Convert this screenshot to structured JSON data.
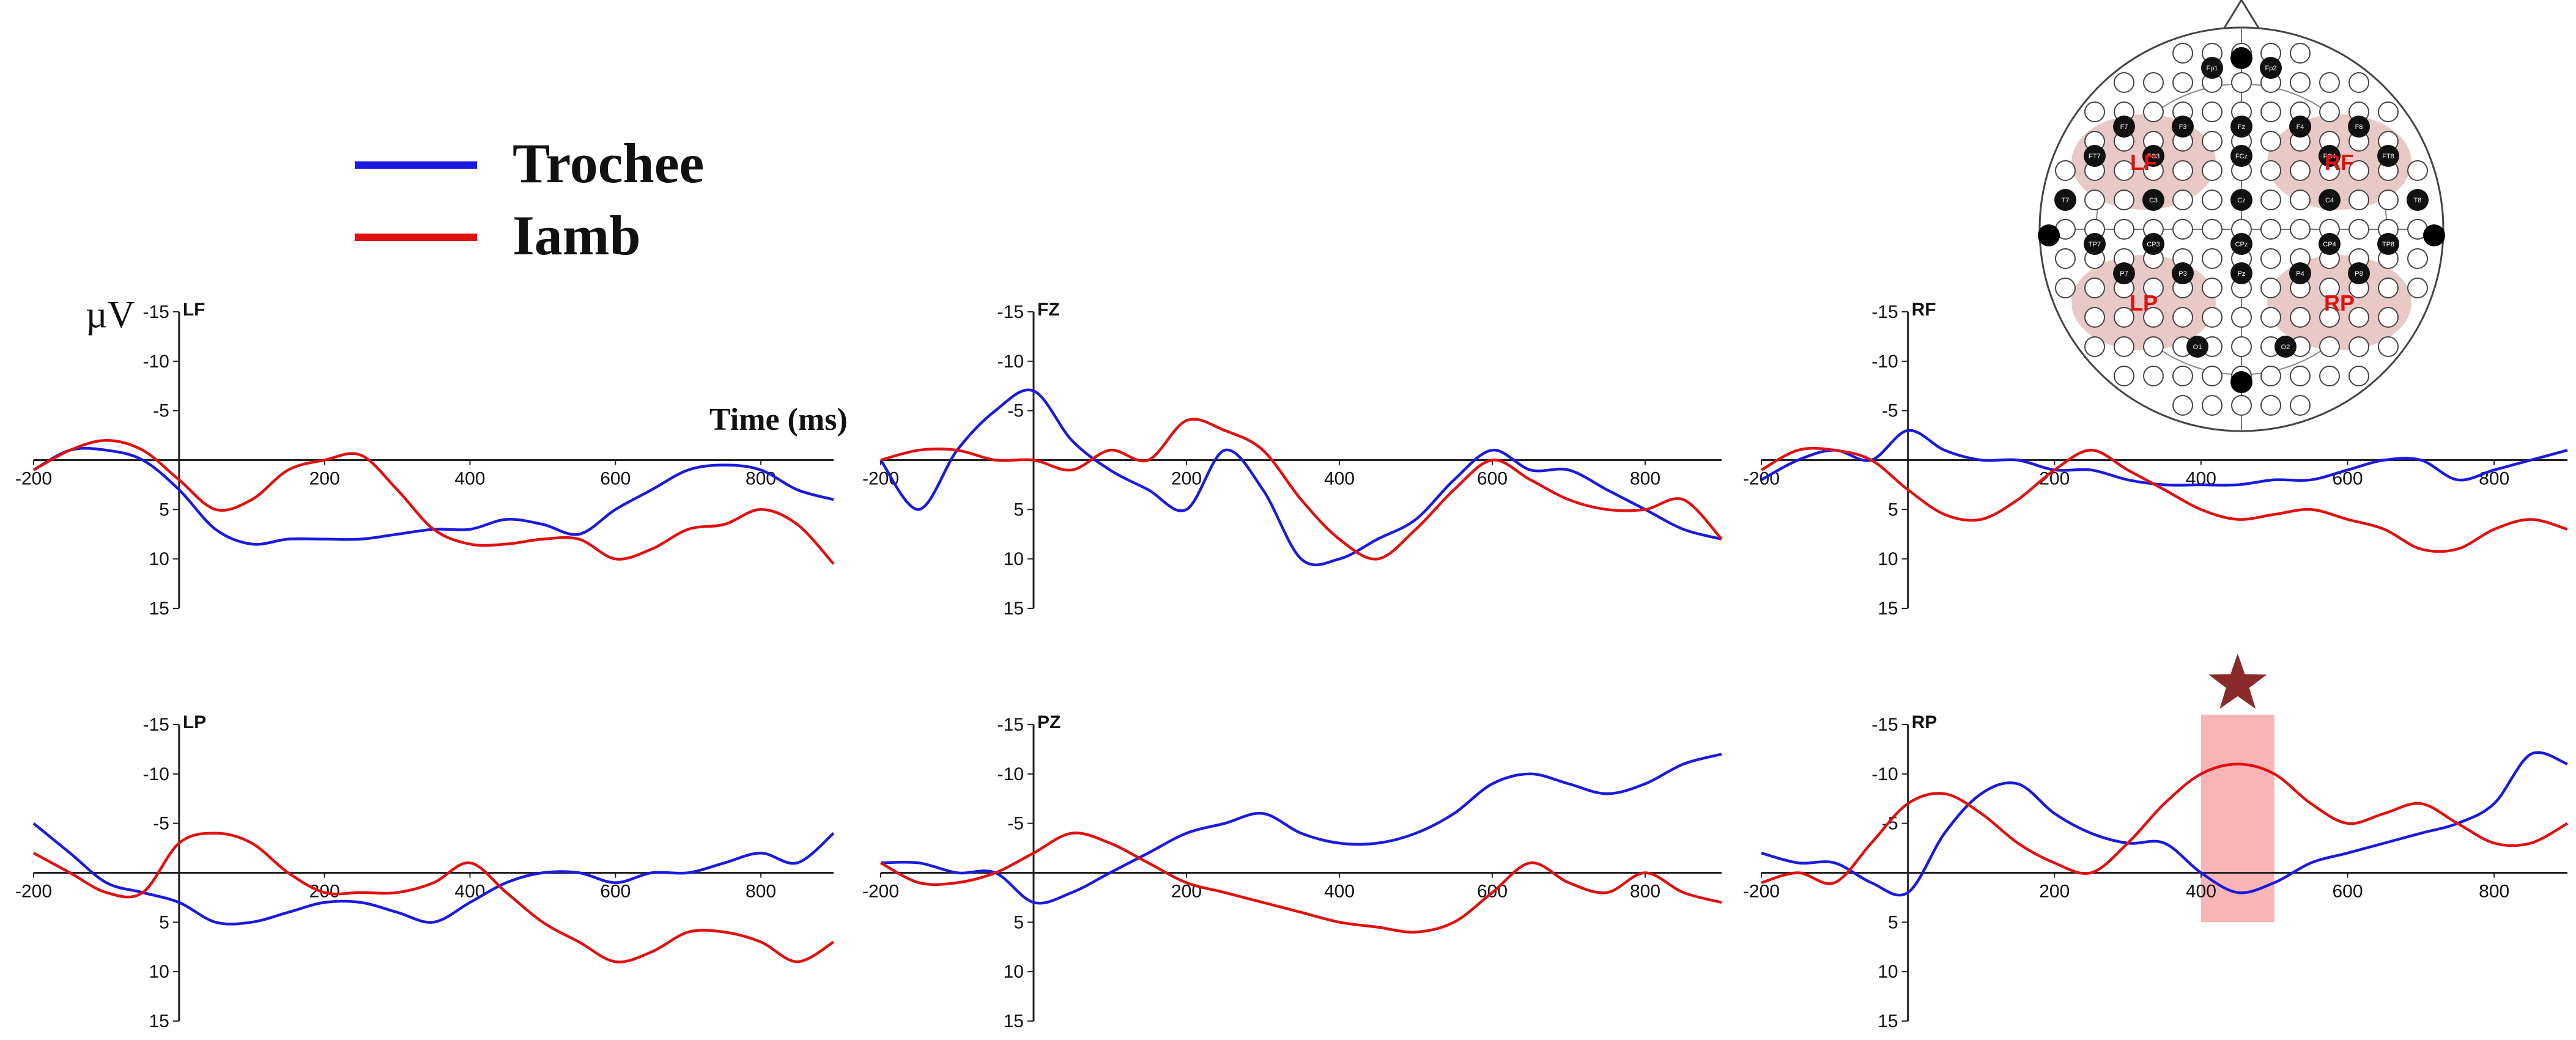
{
  "legend": [
    {
      "label": "Trochee",
      "color": "#1a1adf"
    },
    {
      "label": "Iamb",
      "color": "#e01010"
    }
  ],
  "y_unit_label": "µV",
  "time_axis_label": "Time (ms)",
  "colors": {
    "trochee": "#1a1adf",
    "iamb": "#e01010",
    "highlight": "#f7a8a8",
    "star": "#8b2a2a",
    "region": "#e8c9c6"
  },
  "chart_data": [
    {
      "type": "line",
      "label": "LF",
      "xlim": [
        -200,
        900
      ],
      "ylim": [
        -15,
        15
      ],
      "y_inverted": true,
      "x_ticks": [
        -200,
        200,
        400,
        600,
        800
      ],
      "y_ticks": [
        -15,
        -10,
        -5,
        5,
        10,
        15
      ],
      "x_tick_labels": [
        "-200",
        "200",
        "400",
        "600",
        "800"
      ],
      "y_tick_labels": [
        "-15",
        "-10",
        "-5",
        "5",
        "10",
        "15"
      ],
      "series": [
        {
          "name": "Trochee",
          "x": [
            -200,
            -150,
            -100,
            -50,
            0,
            50,
            100,
            150,
            200,
            250,
            300,
            350,
            400,
            450,
            500,
            550,
            600,
            650,
            700,
            750,
            800,
            850,
            900
          ],
          "values": [
            1,
            -1,
            -1,
            0,
            3,
            7,
            8.5,
            8,
            8,
            8,
            7.5,
            7,
            7,
            6,
            6.5,
            7.5,
            5,
            3,
            1,
            0.5,
            1,
            3,
            4
          ]
        },
        {
          "name": "Iamb",
          "x": [
            -200,
            -150,
            -100,
            -50,
            0,
            50,
            100,
            150,
            200,
            250,
            300,
            350,
            400,
            450,
            500,
            550,
            600,
            650,
            700,
            750,
            800,
            850,
            900
          ],
          "values": [
            1,
            -1,
            -2,
            -1,
            2,
            5,
            4,
            1,
            0,
            -0.5,
            3,
            7,
            8.5,
            8.5,
            8,
            8,
            10,
            9,
            7,
            6.5,
            5,
            6.5,
            10.5
          ]
        }
      ]
    },
    {
      "type": "line",
      "label": "FZ",
      "xlim": [
        -200,
        900
      ],
      "ylim": [
        -15,
        15
      ],
      "y_inverted": true,
      "x_ticks": [
        -200,
        200,
        400,
        600,
        800
      ],
      "y_ticks": [
        -15,
        -10,
        -5,
        5,
        10,
        15
      ],
      "x_tick_labels": [
        "-200",
        "200",
        "400",
        "600",
        "800"
      ],
      "y_tick_labels": [
        "-15",
        "-10",
        "-5",
        "5",
        "10",
        "15"
      ],
      "series": [
        {
          "name": "Trochee",
          "x": [
            -200,
            -150,
            -100,
            -50,
            0,
            50,
            100,
            150,
            200,
            250,
            300,
            350,
            400,
            450,
            500,
            550,
            600,
            650,
            700,
            750,
            800,
            850,
            900
          ],
          "values": [
            0,
            5,
            -1,
            -5,
            -7,
            -2,
            1,
            3,
            5,
            -1,
            3,
            10,
            10,
            8,
            6,
            2,
            -1,
            1,
            1,
            3,
            5,
            7,
            8
          ]
        },
        {
          "name": "Iamb",
          "x": [
            -200,
            -150,
            -100,
            -50,
            0,
            50,
            100,
            150,
            200,
            250,
            300,
            350,
            400,
            450,
            500,
            550,
            600,
            650,
            700,
            750,
            800,
            850,
            900
          ],
          "values": [
            0,
            -1,
            -1,
            0,
            0,
            1,
            -1,
            0,
            -4,
            -3,
            -1,
            4,
            8,
            10,
            7,
            3,
            0,
            2,
            4,
            5,
            5,
            4,
            8
          ]
        }
      ]
    },
    {
      "type": "line",
      "label": "RF",
      "xlim": [
        -200,
        900
      ],
      "ylim": [
        -15,
        15
      ],
      "y_inverted": true,
      "x_ticks": [
        -200,
        200,
        400,
        600,
        800
      ],
      "y_ticks": [
        -15,
        -10,
        -5,
        5,
        10,
        15
      ],
      "x_tick_labels": [
        "-200",
        "200",
        "400",
        "600",
        "800"
      ],
      "y_tick_labels": [
        "-15",
        "-10",
        "-5",
        "5",
        "10",
        "15"
      ],
      "series": [
        {
          "name": "Trochee",
          "x": [
            -200,
            -150,
            -100,
            -50,
            0,
            50,
            100,
            150,
            200,
            250,
            300,
            350,
            400,
            450,
            500,
            550,
            600,
            650,
            700,
            750,
            800,
            850,
            900
          ],
          "values": [
            2,
            0,
            -1,
            0,
            -3,
            -1,
            0,
            0,
            1,
            1,
            2,
            2.5,
            2.5,
            2.5,
            2,
            2,
            1,
            0,
            0,
            2,
            1,
            0,
            -1
          ]
        },
        {
          "name": "Iamb",
          "x": [
            -200,
            -150,
            -100,
            -50,
            0,
            50,
            100,
            150,
            200,
            250,
            300,
            350,
            400,
            450,
            500,
            550,
            600,
            650,
            700,
            750,
            800,
            850,
            900
          ],
          "values": [
            1,
            -1,
            -1,
            0,
            3,
            5.5,
            6,
            4,
            1,
            -1,
            1,
            3,
            5,
            6,
            5.5,
            5,
            6,
            7,
            9,
            9,
            7,
            6,
            7
          ]
        }
      ]
    },
    {
      "type": "line",
      "label": "LP",
      "xlim": [
        -200,
        900
      ],
      "ylim": [
        -15,
        15
      ],
      "y_inverted": true,
      "x_ticks": [
        -200,
        200,
        400,
        600,
        800
      ],
      "y_ticks": [
        -15,
        -10,
        -5,
        5,
        10,
        15
      ],
      "x_tick_labels": [
        "-200",
        "200",
        "400",
        "600",
        "800"
      ],
      "y_tick_labels": [
        "-15",
        "-10",
        "-5",
        "5",
        "10",
        "15"
      ],
      "series": [
        {
          "name": "Trochee",
          "x": [
            -200,
            -150,
            -100,
            -50,
            0,
            50,
            100,
            150,
            200,
            250,
            300,
            350,
            400,
            450,
            500,
            550,
            600,
            650,
            700,
            750,
            800,
            850,
            900
          ],
          "values": [
            -5,
            -2,
            1,
            2,
            3,
            5,
            5,
            4,
            3,
            3,
            4,
            5,
            3,
            1,
            0,
            0,
            1,
            0,
            0,
            -1,
            -2,
            -1,
            -4
          ]
        },
        {
          "name": "Iamb",
          "x": [
            -200,
            -150,
            -100,
            -50,
            0,
            50,
            100,
            150,
            200,
            250,
            300,
            350,
            400,
            450,
            500,
            550,
            600,
            650,
            700,
            750,
            800,
            850,
            900
          ],
          "values": [
            -2,
            0,
            2,
            2,
            -3,
            -4,
            -3,
            0,
            2,
            2,
            2,
            1,
            -1,
            2,
            5,
            7,
            9,
            8,
            6,
            6,
            7,
            9,
            7
          ]
        }
      ]
    },
    {
      "type": "line",
      "label": "PZ",
      "xlim": [
        -200,
        900
      ],
      "ylim": [
        -15,
        15
      ],
      "y_inverted": true,
      "x_ticks": [
        -200,
        200,
        400,
        600,
        800
      ],
      "y_ticks": [
        -15,
        -10,
        -5,
        5,
        10,
        15
      ],
      "x_tick_labels": [
        "-200",
        "200",
        "400",
        "600",
        "800"
      ],
      "y_tick_labels": [
        "-15",
        "-10",
        "-5",
        "5",
        "10",
        "15"
      ],
      "series": [
        {
          "name": "Trochee",
          "x": [
            -200,
            -150,
            -100,
            -50,
            0,
            50,
            100,
            150,
            200,
            250,
            300,
            350,
            400,
            450,
            500,
            550,
            600,
            650,
            700,
            750,
            800,
            850,
            900
          ],
          "values": [
            -1,
            -1,
            0,
            0,
            3,
            2,
            0,
            -2,
            -4,
            -5,
            -6,
            -4,
            -3,
            -3,
            -4,
            -6,
            -9,
            -10,
            -9,
            -8,
            -9,
            -11,
            -12
          ]
        },
        {
          "name": "Iamb",
          "x": [
            -200,
            -150,
            -100,
            -50,
            0,
            50,
            100,
            150,
            200,
            250,
            300,
            350,
            400,
            450,
            500,
            550,
            600,
            650,
            700,
            750,
            800,
            850,
            900
          ],
          "values": [
            -1,
            1,
            1,
            0,
            -2,
            -4,
            -3,
            -1,
            1,
            2,
            3,
            4,
            5,
            5.5,
            6,
            5,
            2,
            -1,
            1,
            2,
            0,
            2,
            3
          ]
        }
      ]
    },
    {
      "type": "line",
      "label": "RP",
      "xlim": [
        -200,
        900
      ],
      "ylim": [
        -15,
        15
      ],
      "y_inverted": true,
      "x_ticks": [
        -200,
        200,
        400,
        600,
        800
      ],
      "y_ticks": [
        -15,
        -10,
        -5,
        5,
        10,
        15
      ],
      "x_tick_labels": [
        "-200",
        "200",
        "400",
        "600",
        "800"
      ],
      "y_tick_labels": [
        "-15",
        "-10",
        "-5",
        "5",
        "10",
        "15"
      ],
      "highlight": {
        "x_start": 400,
        "x_end": 500
      },
      "series": [
        {
          "name": "Trochee",
          "x": [
            -200,
            -150,
            -100,
            -50,
            0,
            50,
            100,
            150,
            200,
            250,
            300,
            350,
            400,
            450,
            500,
            550,
            600,
            650,
            700,
            750,
            800,
            850,
            900
          ],
          "values": [
            -2,
            -1,
            -1,
            1,
            2,
            -4,
            -8,
            -9,
            -6,
            -4,
            -3,
            -3,
            0,
            2,
            1,
            -1,
            -2,
            -3,
            -4,
            -5,
            -7,
            -12,
            -11
          ]
        },
        {
          "name": "Iamb",
          "x": [
            -200,
            -150,
            -100,
            -50,
            0,
            50,
            100,
            150,
            200,
            250,
            300,
            350,
            400,
            450,
            500,
            550,
            600,
            650,
            700,
            750,
            800,
            850,
            900
          ],
          "values": [
            1,
            0,
            1,
            -3,
            -7,
            -8,
            -6,
            -3,
            -1,
            0,
            -3,
            -7,
            -10,
            -11,
            -10,
            -7,
            -5,
            -6,
            -7,
            -5,
            -3,
            -3,
            -5
          ]
        }
      ]
    }
  ],
  "electrode_map": {
    "labels": [
      "Fp1",
      "Fp2",
      "F7",
      "F3",
      "Fz",
      "F4",
      "F8",
      "FT7",
      "FC3",
      "FCz",
      "FC4",
      "FT8",
      "T7",
      "C3",
      "Cz",
      "C4",
      "T8",
      "TP7",
      "CP3",
      "CPz",
      "CP4",
      "TP8",
      "P7",
      "P3",
      "Pz",
      "P4",
      "P8",
      "O1",
      "O2"
    ],
    "regions": [
      "LF",
      "RF",
      "LP",
      "RP"
    ]
  }
}
